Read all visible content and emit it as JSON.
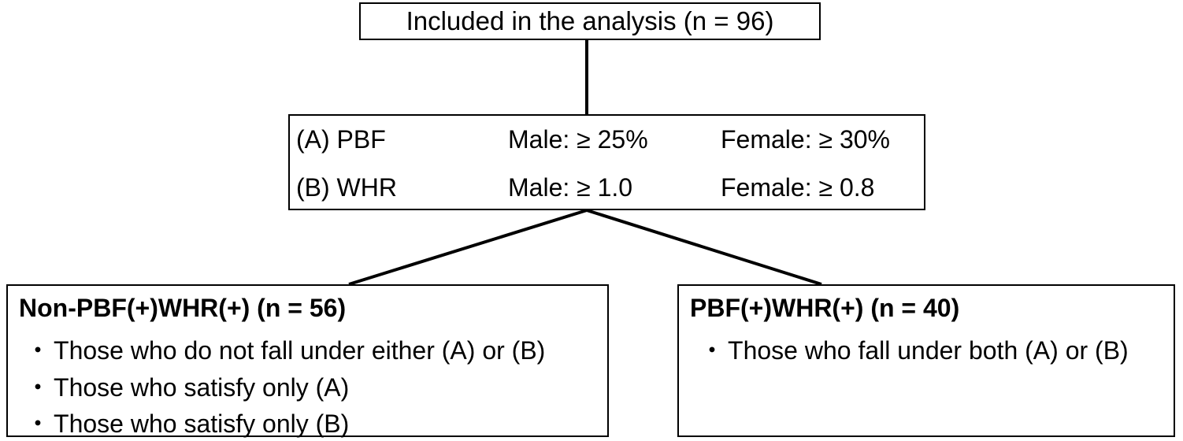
{
  "top": {
    "label": "Included in the analysis (n = 96)"
  },
  "criteria": {
    "rows": [
      {
        "label": "(A) PBF",
        "male": "Male: ≥ 25%",
        "female": "Female: ≥ 30%"
      },
      {
        "label": "(B) WHR",
        "male": "Male: ≥ 1.0",
        "female": "Female: ≥ 0.8"
      }
    ]
  },
  "groups": {
    "left": {
      "title": "Non-PBF(+)WHR(+) (n = 56)",
      "items": [
        "Those who do not fall under either (A) or (B)",
        "Those who satisfy only (A)",
        "Those who satisfy only (B)"
      ]
    },
    "right": {
      "title": "PBF(+)WHR(+) (n = 40)",
      "items": [
        "Those who fall under both (A) or (B)"
      ]
    }
  },
  "bullet_symbol": "・"
}
